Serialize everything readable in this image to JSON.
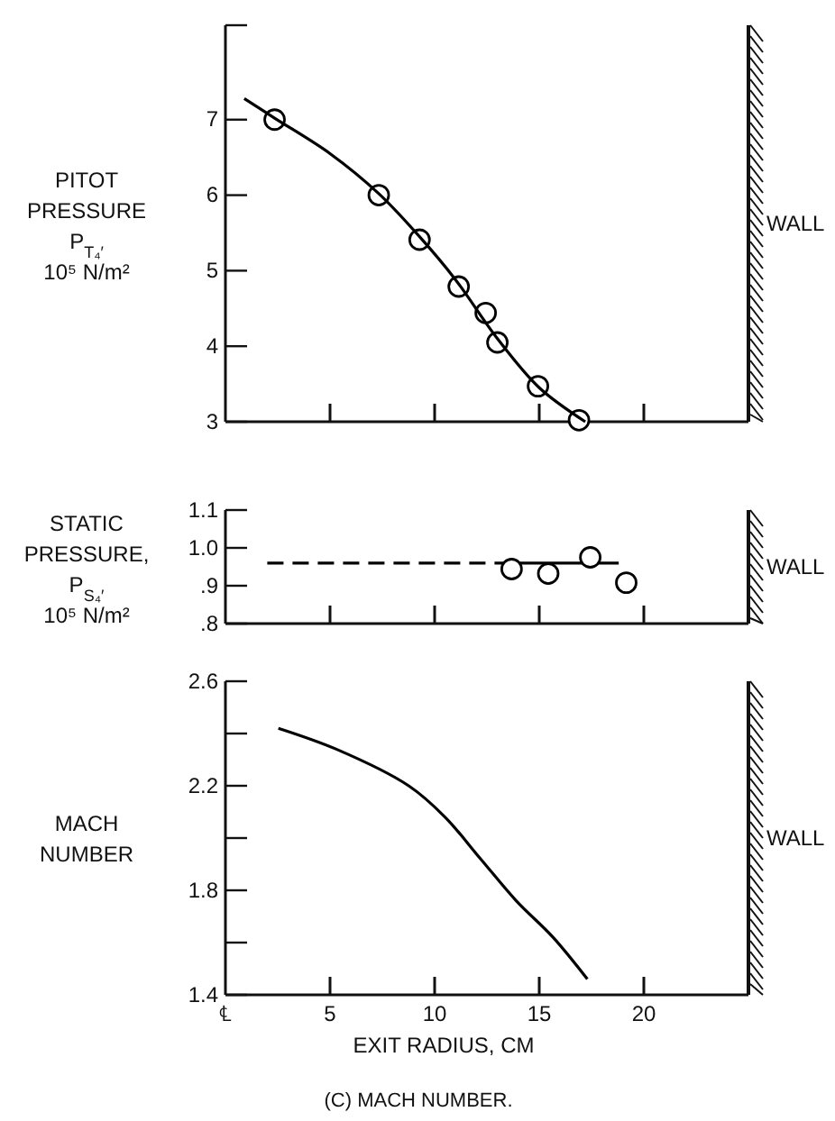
{
  "chart_data": [
    {
      "type": "line",
      "ylabel": "PITOT\nPRESSURE\nP$_{T₄′}$\n10⁵ N/m²",
      "xlim": [
        0,
        25
      ],
      "xticks": [
        {
          "value": 0,
          "label": null
        },
        {
          "value": 5,
          "label": null
        },
        {
          "value": 10,
          "label": null
        },
        {
          "value": 15,
          "label": null
        },
        {
          "value": 20,
          "label": null
        }
      ],
      "ylim": [
        3,
        8.25
      ],
      "yticks": [
        3,
        4,
        5,
        6,
        7,
        {
          "value": 8.25,
          "label": null
        }
      ],
      "tick_labels": "y",
      "grid": false,
      "ref_lines": [
        {
          "axis": "x",
          "value": 25,
          "label": "WALL"
        }
      ],
      "series": [
        {
          "type": "scatter",
          "marker": "circle",
          "color": "#000000",
          "x": [
            2.35,
            7.33,
            9.28,
            11.15,
            12.44,
            13.0,
            14.94,
            16.9
          ],
          "values": [
            7.0,
            6.0,
            5.41,
            4.79,
            4.44,
            4.05,
            3.47,
            3.02
          ]
        },
        {
          "line_style": "solid",
          "color": "#000000",
          "x": [
            0.9,
            2.35,
            5,
            7.33,
            9.28,
            11,
            13,
            15,
            17.2
          ],
          "values": [
            7.28,
            7.02,
            6.55,
            6.02,
            5.45,
            4.88,
            4.1,
            3.45,
            3.0
          ]
        }
      ]
    },
    {
      "type": "line",
      "ylabel": "STATIC\nPRESSURE,\nP$_{S₄′}$\n10⁵ N/m²",
      "xlim": [
        0,
        25
      ],
      "xticks": [
        {
          "value": 0,
          "label": null
        },
        {
          "value": 5,
          "label": null
        },
        {
          "value": 10,
          "label": null
        },
        {
          "value": 15,
          "label": null
        },
        {
          "value": 20,
          "label": null
        }
      ],
      "ylim": [
        0.8,
        1.1
      ],
      "yticks": [
        {
          "value": 0.8,
          "label": ".8"
        },
        {
          "value": 0.9,
          "label": ".9"
        },
        {
          "value": 1.0,
          "label": "1.0"
        },
        {
          "value": 1.1,
          "label": "1.1"
        }
      ],
      "tick_labels": "y",
      "grid": false,
      "ref_lines": [
        {
          "axis": "x",
          "value": 25,
          "label": "WALL"
        }
      ],
      "series": [
        {
          "line_style": "dashed",
          "color": "#000000",
          "x": [
            2.0,
            13.4
          ],
          "values": [
            0.96,
            0.96
          ]
        },
        {
          "line_style": "solid",
          "color": "#000000",
          "x": [
            13.4,
            18.8
          ],
          "values": [
            0.96,
            0.96
          ]
        },
        {
          "type": "scatter",
          "marker": "circle",
          "color": "#000000",
          "x": [
            13.68,
            15.43,
            17.44,
            19.16
          ],
          "values": [
            0.944,
            0.932,
            0.975,
            0.908
          ]
        }
      ]
    },
    {
      "type": "line",
      "ylabel": "MACH\nNUMBER",
      "xlabel": "EXIT RADIUS, CM",
      "annotations": [
        "(C) MACH NUMBER."
      ],
      "xlim": [
        0,
        25
      ],
      "xticks": [
        {
          "value": 0,
          "label": "℄"
        },
        5,
        10,
        15,
        20
      ],
      "ylim": [
        1.4,
        2.6
      ],
      "yticks": [
        1.4,
        {
          "value": 1.6,
          "label": null
        },
        1.8,
        {
          "value": 2.0,
          "label": null
        },
        2.2,
        {
          "value": 2.4,
          "label": null
        },
        2.6
      ],
      "grid": false,
      "ref_lines": [
        {
          "axis": "x",
          "value": 25,
          "label": "WALL"
        }
      ],
      "series": [
        {
          "line_style": "solid",
          "color": "#000000",
          "x": [
            2.53,
            5.3,
            8.76,
            10.5,
            12.2,
            13.9,
            15.66,
            17.3
          ],
          "values": [
            2.42,
            2.34,
            2.2,
            2.08,
            1.92,
            1.76,
            1.62,
            1.46
          ]
        }
      ]
    }
  ]
}
